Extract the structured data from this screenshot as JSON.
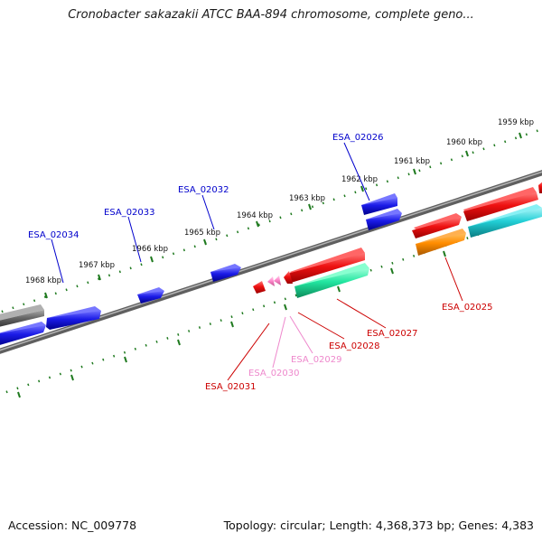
{
  "title": "Cronobacter sakazakii ATCC BAA-894 chromosome, complete geno...",
  "footer": {
    "accession": "Accession: NC_009778",
    "summary": "Topology: circular; Length: 4,368,373 bp; Genes: 4,383"
  },
  "scale_labels": [
    "1959 kbp",
    "1960 kbp",
    "1961 kbp",
    "1962 kbp",
    "1963 kbp",
    "1964 kbp",
    "1965 kbp",
    "1966 kbp",
    "1967 kbp",
    "1968 kbp"
  ],
  "gene_labels": {
    "top": [
      "ESA_02026",
      "ESA_02032",
      "ESA_02033",
      "ESA_02034"
    ],
    "bottom": [
      "ESA_02025",
      "ESA_02027",
      "ESA_02028",
      "ESA_02029",
      "ESA_02030",
      "ESA_02031"
    ]
  },
  "colors": {
    "tick": "#1f7a1f",
    "backbone": "#8c8c8c",
    "gene_blue": "#1515e6",
    "gene_gray": "#666666",
    "gene_red": "#ee1111",
    "gene_green": "#22e6a0",
    "gene_cyan": "#22cfd6",
    "gene_orange": "#ff8c00",
    "gene_pink": "#ff88cc",
    "label_blue": "#0000cc",
    "label_red": "#cc0000",
    "label_pink": "#ee88cc"
  }
}
